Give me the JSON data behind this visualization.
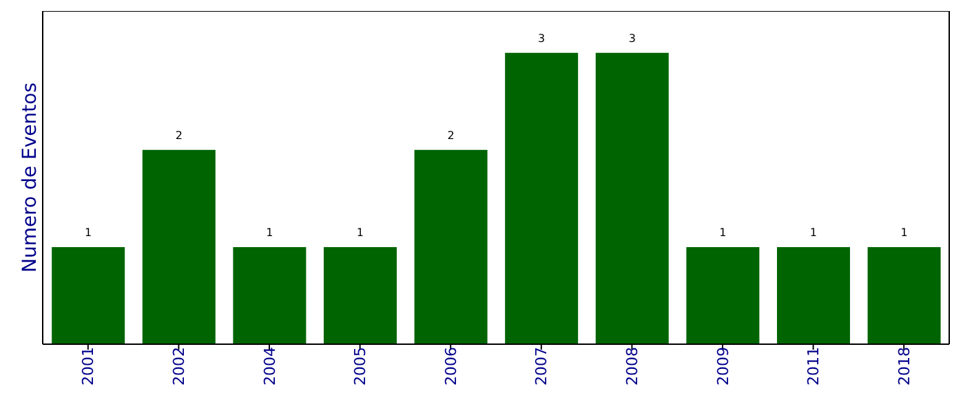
{
  "chart_data": {
    "type": "bar",
    "ylabel": "Numero de Eventos",
    "categories": [
      "2001",
      "2002",
      "2004",
      "2005",
      "2006",
      "2007",
      "2008",
      "2009",
      "2011",
      "2018"
    ],
    "values": [
      1,
      2,
      1,
      1,
      2,
      3,
      3,
      1,
      1,
      1
    ],
    "color": "#006400",
    "ylim": [
      0,
      3.43
    ],
    "data_labels": true,
    "grid": false,
    "tick_labels": "x"
  }
}
